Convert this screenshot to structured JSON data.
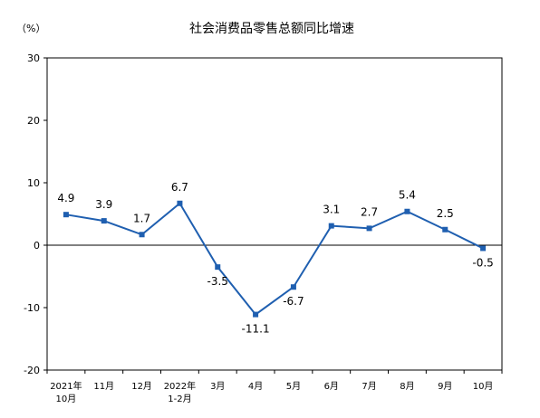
{
  "chart_data": {
    "type": "line",
    "title": "社会消费品零售总额同比增速",
    "unit_label": "（%）",
    "categories": [
      [
        "2021年",
        "10月"
      ],
      [
        "11月"
      ],
      [
        "12月"
      ],
      [
        "2022年",
        "1-2月"
      ],
      [
        "3月"
      ],
      [
        "4月"
      ],
      [
        "5月"
      ],
      [
        "6月"
      ],
      [
        "7月"
      ],
      [
        "8月"
      ],
      [
        "9月"
      ],
      [
        "10月"
      ]
    ],
    "values": [
      4.9,
      3.9,
      1.7,
      6.7,
      -3.5,
      -11.1,
      -6.7,
      3.1,
      2.7,
      5.4,
      2.5,
      -0.5
    ],
    "data_labels": [
      "4.9",
      "3.9",
      "1.7",
      "6.7",
      "-3.5",
      "-11.1",
      "-6.7",
      "3.1",
      "2.7",
      "5.4",
      "2.5",
      "-0.5"
    ],
    "ylim": [
      -20,
      30
    ],
    "yticks": [
      -20,
      -10,
      0,
      10,
      20,
      30
    ],
    "grid": false,
    "series_color": "#1f5fb0"
  }
}
